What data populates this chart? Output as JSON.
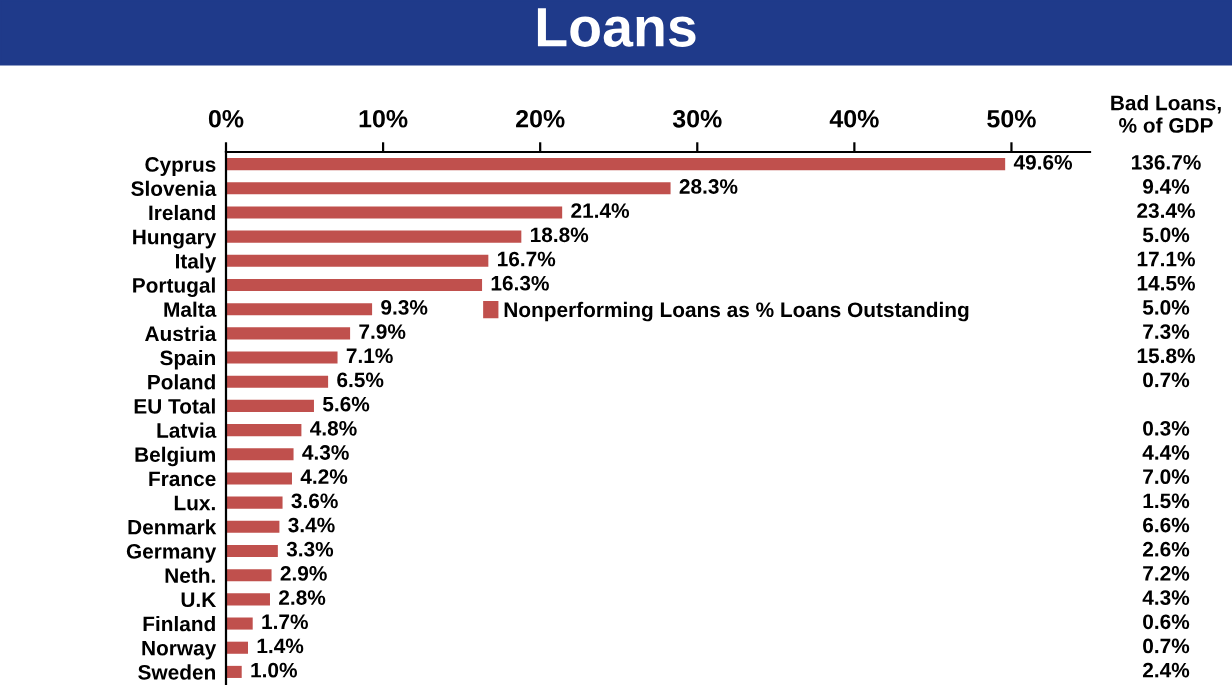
{
  "chart_data": {
    "type": "bar",
    "orientation": "horizontal",
    "title": "Loans",
    "categories": [
      "Cyprus",
      "Slovenia",
      "Ireland",
      "Hungary",
      "Italy",
      "Portugal",
      "Malta",
      "Austria",
      "Spain",
      "Poland",
      "EU Total",
      "Latvia",
      "Belgium",
      "France",
      "Lux.",
      "Denmark",
      "Germany",
      "Neth.",
      "U.K",
      "Finland",
      "Norway",
      "Sweden"
    ],
    "series": [
      {
        "name": "Nonperforming Loans as % Loans Outstanding",
        "color": "#c0504d",
        "values": [
          49.6,
          28.3,
          21.4,
          18.8,
          16.7,
          16.3,
          9.3,
          7.9,
          7.1,
          6.5,
          5.6,
          4.8,
          4.3,
          4.2,
          3.6,
          3.4,
          3.3,
          2.9,
          2.8,
          1.7,
          1.4,
          1.0
        ],
        "value_labels": [
          "49.6%",
          "28.3%",
          "21.4%",
          "18.8%",
          "16.7%",
          "16.3%",
          "9.3%",
          "7.9%",
          "7.1%",
          "6.5%",
          "5.6%",
          "4.8%",
          "4.3%",
          "4.2%",
          "3.6%",
          "3.4%",
          "3.3%",
          "2.9%",
          "2.8%",
          "1.7%",
          "1.4%",
          "1.0%"
        ]
      }
    ],
    "xlim": [
      0,
      55
    ],
    "xticks": [
      {
        "value": 0,
        "label": "0%"
      },
      {
        "value": 10,
        "label": "10%"
      },
      {
        "value": 20,
        "label": "20%"
      },
      {
        "value": 30,
        "label": "30%"
      },
      {
        "value": 40,
        "label": "40%"
      },
      {
        "value": 50,
        "label": "50%"
      }
    ],
    "legend": "center",
    "annotations": [
      "Bad Loans,\n% of GDP",
      "136.7%\n9.4%\n23.4%\n5.0%\n17.1%\n14.5%\n5.0%\n7.3%\n15.8%\n0.7%\n\n0.3%\n4.4%\n7.0%\n1.5%\n6.6%\n2.6%\n7.2%\n4.3%\n0.6%\n0.7%\n2.4%"
    ]
  }
}
